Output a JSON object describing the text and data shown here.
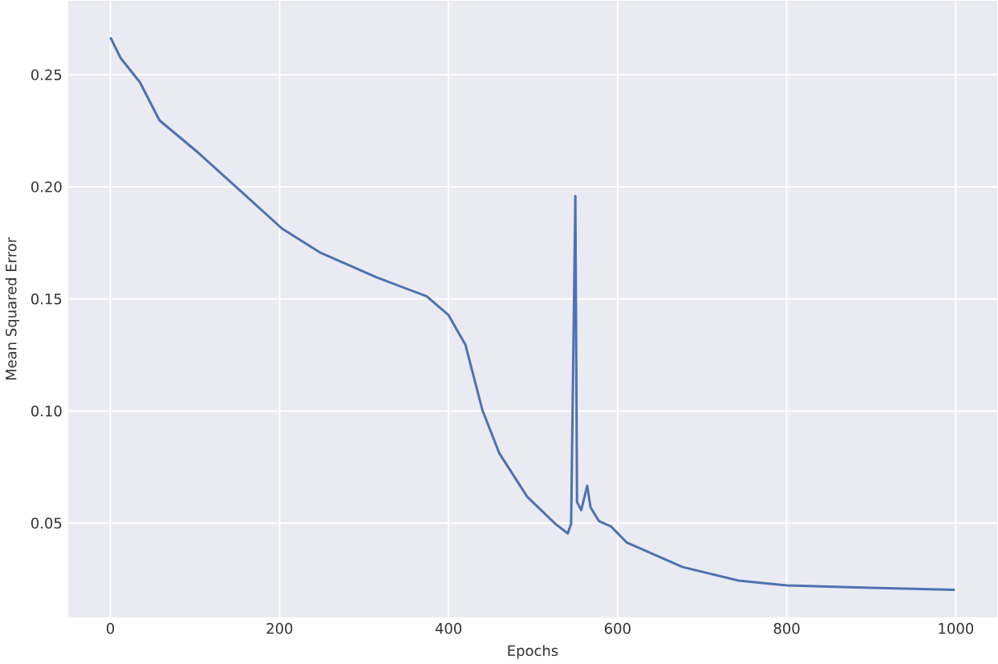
{
  "chart_data": {
    "type": "line",
    "xlabel": "Epochs",
    "ylabel": "Mean Squared Error",
    "grid": true,
    "xlim": [
      -50,
      1049
    ],
    "ylim": [
      0.008,
      0.283
    ],
    "xticks": [
      0,
      200,
      400,
      600,
      800,
      1000
    ],
    "yticks": [
      {
        "value": 0.05,
        "label": "0.05"
      },
      {
        "value": 0.1,
        "label": "0.10"
      },
      {
        "value": 0.15,
        "label": "0.15"
      },
      {
        "value": 0.2,
        "label": "0.20"
      },
      {
        "value": 0.25,
        "label": "0.25"
      }
    ],
    "series": [
      {
        "color": "#4c72b0",
        "x": [
          0,
          12,
          35,
          58,
          104,
          150,
          203,
          249,
          315,
          374,
          400,
          420,
          440,
          460,
          493,
          526,
          541,
          545,
          550,
          552,
          557,
          564,
          568,
          578,
          592,
          611,
          677,
          743,
          800,
          900,
          999
        ],
        "values": [
          0.2667,
          0.2575,
          0.2466,
          0.2297,
          0.2152,
          0.1995,
          0.1814,
          0.1705,
          0.1596,
          0.1512,
          0.1428,
          0.1295,
          0.1005,
          0.0812,
          0.0618,
          0.0498,
          0.0454,
          0.0498,
          0.1959,
          0.0594,
          0.0558,
          0.0667,
          0.057,
          0.0509,
          0.0486,
          0.0413,
          0.0304,
          0.0244,
          0.0222,
          0.0212,
          0.0203
        ]
      }
    ]
  }
}
